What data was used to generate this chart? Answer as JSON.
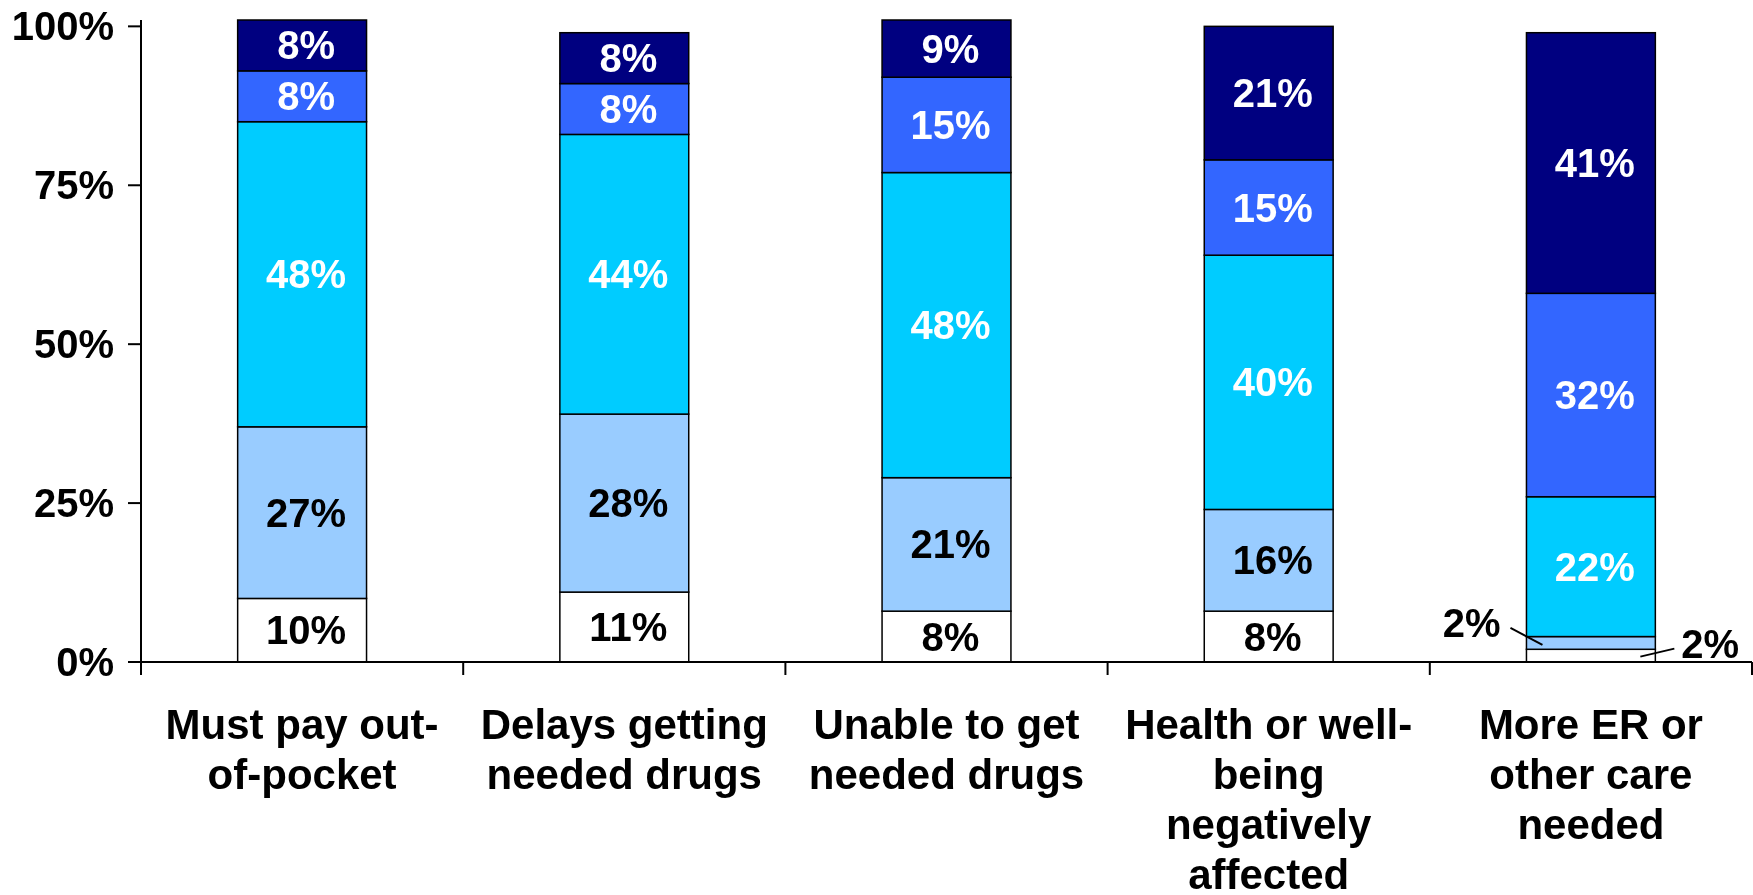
{
  "chart_data": {
    "type": "bar",
    "stacked": true,
    "categories": [
      "Must pay out-of-pocket",
      "Delays getting needed drugs",
      "Unable to get needed drugs",
      "Health or well-being negatively affected",
      "More ER or other care needed"
    ],
    "series": [
      {
        "color": "#ffffff",
        "values": [
          10,
          11,
          8,
          8,
          2
        ],
        "value_labels": [
          "10%",
          "11%",
          "8%",
          "8%",
          "2%"
        ]
      },
      {
        "color": "#99ccff",
        "values": [
          27,
          28,
          21,
          16,
          2
        ],
        "value_labels": [
          "27%",
          "28%",
          "21%",
          "16%",
          "2%"
        ]
      },
      {
        "color": "#00ccff",
        "values": [
          48,
          44,
          48,
          40,
          22
        ],
        "value_labels": [
          "48%",
          "44%",
          "48%",
          "40%",
          "22%"
        ]
      },
      {
        "color": "#3366ff",
        "values": [
          8,
          8,
          15,
          15,
          32
        ],
        "value_labels": [
          "8%",
          "8%",
          "15%",
          "15%",
          "32%"
        ]
      },
      {
        "color": "#000080",
        "values": [
          8,
          8,
          9,
          21,
          41
        ],
        "value_labels": [
          "8%",
          "8%",
          "9%",
          "21%",
          "41%"
        ]
      }
    ],
    "ylim": [
      0,
      101
    ],
    "yticks": [
      {
        "value": 0,
        "label": "0%"
      },
      {
        "value": 25,
        "label": "25%"
      },
      {
        "value": 50,
        "label": "50%"
      },
      {
        "value": 75,
        "label": "75%"
      },
      {
        "value": 100,
        "label": "100%"
      }
    ]
  }
}
